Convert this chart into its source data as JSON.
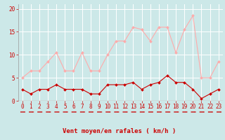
{
  "x": [
    0,
    1,
    2,
    3,
    4,
    5,
    6,
    7,
    8,
    9,
    10,
    11,
    12,
    13,
    14,
    15,
    16,
    17,
    18,
    19,
    20,
    21,
    22,
    23
  ],
  "wind_avg": [
    2.5,
    1.5,
    2.5,
    2.5,
    3.5,
    2.5,
    2.5,
    2.5,
    1.5,
    1.5,
    3.5,
    3.5,
    3.5,
    4.0,
    2.5,
    3.5,
    4.0,
    5.5,
    4.0,
    4.0,
    2.5,
    0.5,
    1.5,
    2.5
  ],
  "wind_gust": [
    5.0,
    6.5,
    6.5,
    8.5,
    10.5,
    6.5,
    6.5,
    10.5,
    6.5,
    6.5,
    10.0,
    13.0,
    13.0,
    16.0,
    15.5,
    13.0,
    16.0,
    16.0,
    10.5,
    15.5,
    18.5,
    5.0,
    5.0,
    8.5
  ],
  "wind_avg_color": "#cc0000",
  "wind_gust_color": "#ffaaaa",
  "bg_color": "#cce8e8",
  "grid_color": "#ffffff",
  "xlabel": "Vent moyen/en rafales ( km/h )",
  "ylim": [
    0,
    21
  ],
  "xlim": [
    -0.5,
    23.5
  ],
  "yticks": [
    0,
    5,
    10,
    15,
    20
  ],
  "xticks": [
    0,
    1,
    2,
    3,
    4,
    5,
    6,
    7,
    8,
    9,
    10,
    11,
    12,
    13,
    14,
    15,
    16,
    17,
    18,
    19,
    20,
    21,
    22,
    23
  ],
  "tick_fontsize": 5.5,
  "xlabel_fontsize": 6.5
}
